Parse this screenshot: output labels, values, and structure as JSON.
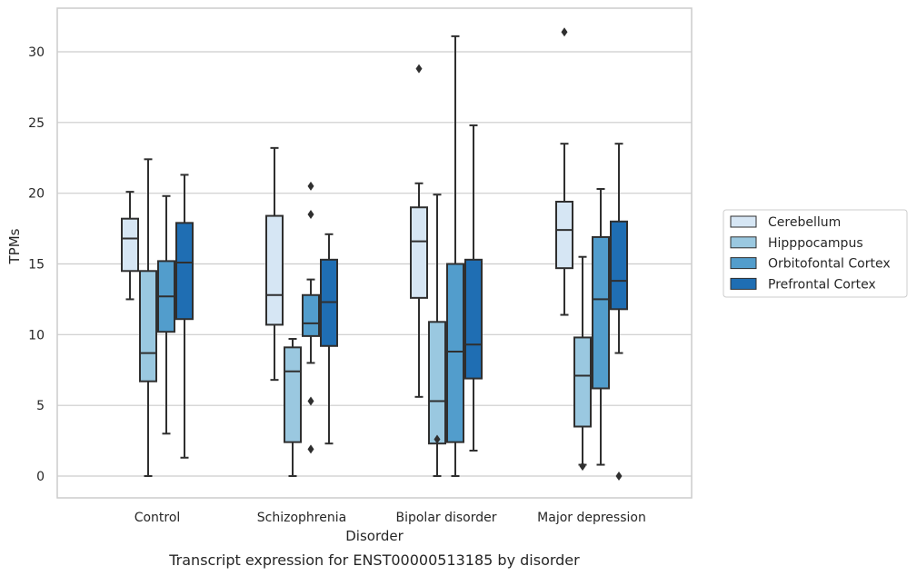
{
  "caption": "Transcript expression for ENST00000513185 by disorder",
  "colors": {
    "Cerebellum": "#d6e6f4",
    "Hipppocampus": "#9ac8e0",
    "Orbitofontal Cortex": "#529dcc",
    "Prefrontal Cortex": "#1f6eb3",
    "grid": "#cccccc",
    "box_line": "#2f2f2f"
  },
  "chart_data": {
    "type": "box",
    "title": "",
    "xlabel": "Disorder",
    "ylabel": "TPMs",
    "ylim": [
      -1.5,
      33
    ],
    "y_ticks": [
      0,
      5,
      10,
      15,
      20,
      25,
      30
    ],
    "categories": [
      "Control",
      "Schizophrenia",
      "Bipolar disorder",
      "Major depression"
    ],
    "grid": "horizontal",
    "legend_position": "right",
    "series": [
      {
        "name": "Cerebellum",
        "boxes": [
          {
            "whisker_low": 12.5,
            "q1": 14.5,
            "median": 16.8,
            "q3": 18.2,
            "whisker_high": 20.1,
            "outliers": []
          },
          {
            "whisker_low": 6.8,
            "q1": 10.7,
            "median": 12.8,
            "q3": 18.4,
            "whisker_high": 23.2,
            "outliers": []
          },
          {
            "whisker_low": 5.6,
            "q1": 12.6,
            "median": 16.6,
            "q3": 19.0,
            "whisker_high": 20.7,
            "outliers": [
              28.8
            ]
          },
          {
            "whisker_low": 11.4,
            "q1": 14.7,
            "median": 17.4,
            "q3": 19.4,
            "whisker_high": 23.5,
            "outliers": [
              31.4
            ]
          }
        ]
      },
      {
        "name": "Hipppocampus",
        "boxes": [
          {
            "whisker_low": 0.0,
            "q1": 6.7,
            "median": 8.7,
            "q3": 14.5,
            "whisker_high": 22.4,
            "outliers": []
          },
          {
            "whisker_low": 0.0,
            "q1": 2.4,
            "median": 7.4,
            "q3": 9.1,
            "whisker_high": 9.7,
            "outliers": []
          },
          {
            "whisker_low": 0.0,
            "q1": 2.3,
            "median": 5.3,
            "q3": 10.9,
            "whisker_high": 19.9,
            "outliers": [
              2.6
            ]
          },
          {
            "whisker_low": 0.8,
            "q1": 3.5,
            "median": 7.1,
            "q3": 9.8,
            "whisker_high": 15.5,
            "outliers": [
              0.7
            ]
          }
        ]
      },
      {
        "name": "Orbitofontal Cortex",
        "boxes": [
          {
            "whisker_low": 3.0,
            "q1": 10.2,
            "median": 12.7,
            "q3": 15.2,
            "whisker_high": 19.8,
            "outliers": []
          },
          {
            "whisker_low": 8.0,
            "q1": 9.9,
            "median": 10.8,
            "q3": 12.8,
            "whisker_high": 13.9,
            "outliers": [
              20.5,
              18.5,
              5.3,
              1.9
            ]
          },
          {
            "whisker_low": 0.0,
            "q1": 2.4,
            "median": 8.8,
            "q3": 15.0,
            "whisker_high": 31.1,
            "outliers": []
          },
          {
            "whisker_low": 0.8,
            "q1": 6.2,
            "median": 12.5,
            "q3": 16.9,
            "whisker_high": 20.3,
            "outliers": []
          }
        ]
      },
      {
        "name": "Prefrontal Cortex",
        "boxes": [
          {
            "whisker_low": 1.3,
            "q1": 11.1,
            "median": 15.1,
            "q3": 17.9,
            "whisker_high": 21.3,
            "outliers": []
          },
          {
            "whisker_low": 2.3,
            "q1": 9.2,
            "median": 12.3,
            "q3": 15.3,
            "whisker_high": 17.1,
            "outliers": []
          },
          {
            "whisker_low": 1.8,
            "q1": 6.9,
            "median": 9.3,
            "q3": 15.3,
            "whisker_high": 24.8,
            "outliers": []
          },
          {
            "whisker_low": 8.7,
            "q1": 11.8,
            "median": 13.8,
            "q3": 18.0,
            "whisker_high": 23.5,
            "outliers": [
              0.0
            ]
          }
        ]
      }
    ]
  }
}
